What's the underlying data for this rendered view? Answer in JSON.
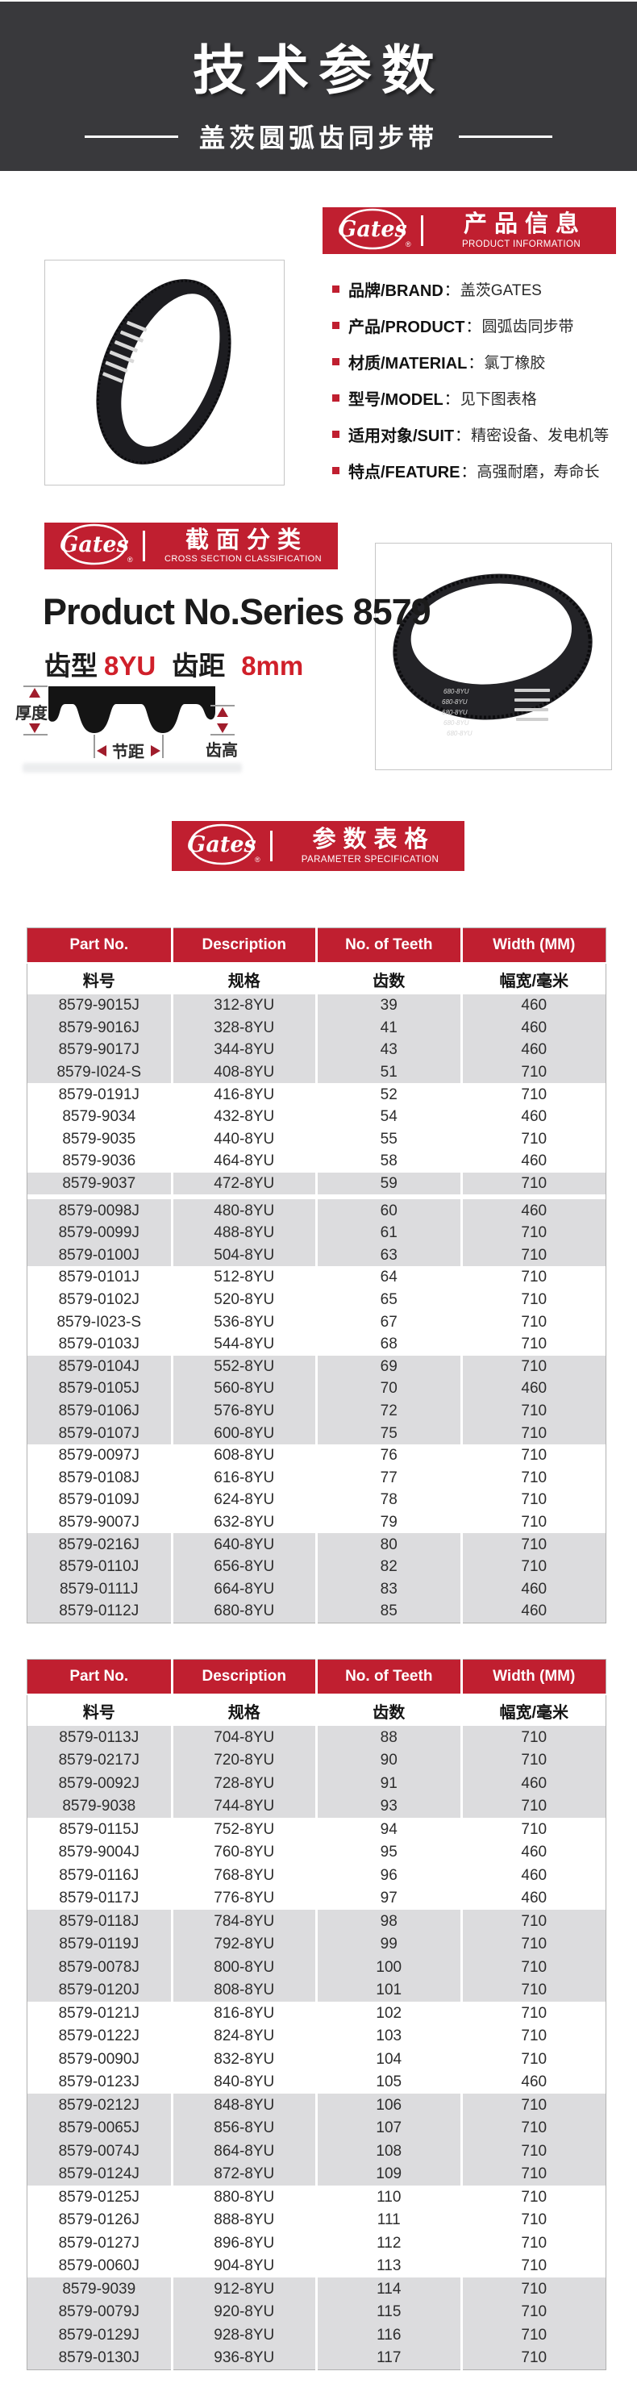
{
  "colors": {
    "accent_red": "#c01f30",
    "bright_red": "#d0202a",
    "header_bg": "#39393c",
    "row_gray": "#dcdcde",
    "text_dark": "#1b1b1b"
  },
  "hero": {
    "title": "技术参数",
    "subtitle": "盖茨圆弧齿同步带"
  },
  "brand": {
    "logo_text": "Gates",
    "registered": "®"
  },
  "info_banner": {
    "title_cn": "产品信息",
    "title_en": "PRODUCT INFORMATION"
  },
  "product_info": {
    "items": [
      {
        "label": "品牌/BRAND",
        "colon": "：",
        "value": "盖茨GATES"
      },
      {
        "label": "产品/PRODUCT",
        "colon": "：",
        "value": "圆弧齿同步带"
      },
      {
        "label": "材质/MATERIAL",
        "colon": "：",
        "value": "氯丁橡胶"
      },
      {
        "label": "型号/MODEL",
        "colon": "：",
        "value": "见下图表格"
      },
      {
        "label": "适用对象/SUIT",
        "colon": "：",
        "value": "精密设备、发电机等"
      },
      {
        "label": "特点/FEATURE",
        "colon": "：",
        "value": "高强耐磨，寿命长"
      }
    ]
  },
  "section_banner": {
    "title_cn": "截面分类",
    "title_en": "CROSS SECTION CLASSIFICATION"
  },
  "series": {
    "heading": "Product No.Series 8579",
    "tooth_label": "齿型",
    "tooth_value": "8YU",
    "pitch_label": "齿距",
    "pitch_value": "8mm"
  },
  "diagram": {
    "thickness": "厚度",
    "pitch": "节距",
    "tooth_height": "齿高"
  },
  "photos": {
    "belt2_label": "680-8YU"
  },
  "param_banner": {
    "title_cn": "参数表格",
    "title_en": "PARAMETER SPECIFICATION"
  },
  "table": {
    "headers_en": [
      "Part No.",
      "Description",
      "No. of Teeth",
      "Width  (MM)"
    ],
    "headers_cn": [
      "料号",
      "规格",
      "齿数",
      "幅宽/毫米"
    ]
  },
  "table1_rows": [
    [
      "8579-9015J",
      "312-8YU",
      "39",
      "460"
    ],
    [
      "8579-9016J",
      "328-8YU",
      "41",
      "460"
    ],
    [
      "8579-9017J",
      "344-8YU",
      "43",
      "460"
    ],
    [
      "8579-I024-S",
      "408-8YU",
      "51",
      "710"
    ],
    [
      "8579-0191J",
      "416-8YU",
      "52",
      "710"
    ],
    [
      "8579-9034",
      "432-8YU",
      "54",
      "460"
    ],
    [
      "8579-9035",
      "440-8YU",
      "55",
      "710"
    ],
    [
      "8579-9036",
      "464-8YU",
      "58",
      "460"
    ],
    [
      "8579-9037",
      "472-8YU",
      "59",
      "710"
    ],
    [
      "8579-0098J",
      "480-8YU",
      "60",
      "460"
    ],
    [
      "8579-0099J",
      "488-8YU",
      "61",
      "710"
    ],
    [
      "8579-0100J",
      "504-8YU",
      "63",
      "710"
    ],
    [
      "8579-0101J",
      "512-8YU",
      "64",
      "710"
    ],
    [
      "8579-0102J",
      "520-8YU",
      "65",
      "710"
    ],
    [
      "8579-I023-S",
      "536-8YU",
      "67",
      "710"
    ],
    [
      "8579-0103J",
      "544-8YU",
      "68",
      "710"
    ],
    [
      "8579-0104J",
      "552-8YU",
      "69",
      "710"
    ],
    [
      "8579-0105J",
      "560-8YU",
      "70",
      "460"
    ],
    [
      "8579-0106J",
      "576-8YU",
      "72",
      "710"
    ],
    [
      "8579-0107J",
      "600-8YU",
      "75",
      "710"
    ],
    [
      "8579-0097J",
      "608-8YU",
      "76",
      "710"
    ],
    [
      "8579-0108J",
      "616-8YU",
      "77",
      "710"
    ],
    [
      "8579-0109J",
      "624-8YU",
      "78",
      "710"
    ],
    [
      "8579-9007J",
      "632-8YU",
      "79",
      "710"
    ],
    [
      "8579-0216J",
      "640-8YU",
      "80",
      "710"
    ],
    [
      "8579-0110J",
      "656-8YU",
      "82",
      "710"
    ],
    [
      "8579-0111J",
      "664-8YU",
      "83",
      "460"
    ],
    [
      "8579-0112J",
      "680-8YU",
      "85",
      "460"
    ]
  ],
  "table2_rows": [
    [
      "8579-0113J",
      "704-8YU",
      "88",
      "710"
    ],
    [
      "8579-0217J",
      "720-8YU",
      "90",
      "710"
    ],
    [
      "8579-0092J",
      "728-8YU",
      "91",
      "460"
    ],
    [
      "8579-9038",
      "744-8YU",
      "93",
      "710"
    ],
    [
      "8579-0115J",
      "752-8YU",
      "94",
      "710"
    ],
    [
      "8579-9004J",
      "760-8YU",
      "95",
      "460"
    ],
    [
      "8579-0116J",
      "768-8YU",
      "96",
      "460"
    ],
    [
      "8579-0117J",
      "776-8YU",
      "97",
      "460"
    ],
    [
      "8579-0118J",
      "784-8YU",
      "98",
      "710"
    ],
    [
      "8579-0119J",
      "792-8YU",
      "99",
      "710"
    ],
    [
      "8579-0078J",
      "800-8YU",
      "100",
      "710"
    ],
    [
      "8579-0120J",
      "808-8YU",
      "101",
      "710"
    ],
    [
      "8579-0121J",
      "816-8YU",
      "102",
      "710"
    ],
    [
      "8579-0122J",
      "824-8YU",
      "103",
      "710"
    ],
    [
      "8579-0090J",
      "832-8YU",
      "104",
      "710"
    ],
    [
      "8579-0123J",
      "840-8YU",
      "105",
      "460"
    ],
    [
      "8579-0212J",
      "848-8YU",
      "106",
      "710"
    ],
    [
      "8579-0065J",
      "856-8YU",
      "107",
      "710"
    ],
    [
      "8579-0074J",
      "864-8YU",
      "108",
      "710"
    ],
    [
      "8579-0124J",
      "872-8YU",
      "109",
      "710"
    ],
    [
      "8579-0125J",
      "880-8YU",
      "110",
      "710"
    ],
    [
      "8579-0126J",
      "888-8YU",
      "111",
      "710"
    ],
    [
      "8579-0127J",
      "896-8YU",
      "112",
      "710"
    ],
    [
      "8579-0060J",
      "904-8YU",
      "113",
      "710"
    ],
    [
      "8579-9039",
      "912-8YU",
      "114",
      "710"
    ],
    [
      "8579-0079J",
      "920-8YU",
      "115",
      "710"
    ],
    [
      "8579-0129J",
      "928-8YU",
      "116",
      "710"
    ],
    [
      "8579-0130J",
      "936-8YU",
      "117",
      "710"
    ]
  ]
}
